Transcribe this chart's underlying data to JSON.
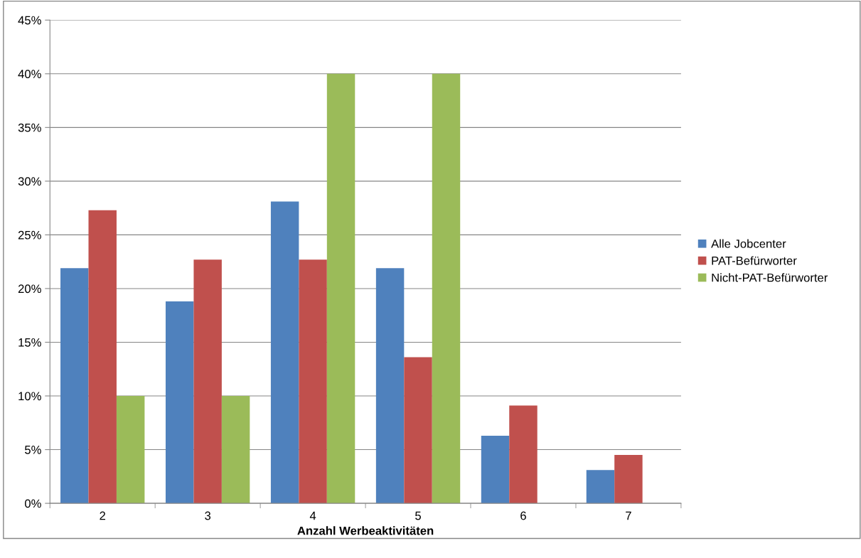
{
  "chart_data": {
    "type": "bar",
    "xlabel": "Anzahl Werbeaktivitäten",
    "categories": [
      "2",
      "3",
      "4",
      "5",
      "6",
      "7"
    ],
    "series": [
      {
        "name": "Alle Jobcenter",
        "color": "#4f81bd",
        "values": [
          21.9,
          18.8,
          28.1,
          21.9,
          6.3,
          3.1
        ]
      },
      {
        "name": "PAT-Befürworter",
        "color": "#c0504d",
        "values": [
          27.3,
          22.7,
          22.7,
          13.6,
          9.1,
          4.5
        ]
      },
      {
        "name": "Nicht-PAT-Befürworter",
        "color": "#9bbb59",
        "values": [
          10,
          10,
          40,
          40,
          0,
          0
        ]
      }
    ],
    "ylim": [
      0,
      45
    ],
    "yticks": [
      {
        "value": 0,
        "label": "0%"
      },
      {
        "value": 5,
        "label": "5%"
      },
      {
        "value": 10,
        "label": "10%"
      },
      {
        "value": 15,
        "label": "15%"
      },
      {
        "value": 20,
        "label": "20%"
      },
      {
        "value": 25,
        "label": "25%"
      },
      {
        "value": 30,
        "label": "30%"
      },
      {
        "value": 35,
        "label": "35%"
      },
      {
        "value": 40,
        "label": "40%"
      },
      {
        "value": 45,
        "label": "45%"
      }
    ],
    "grid": "y",
    "legend": "right"
  }
}
